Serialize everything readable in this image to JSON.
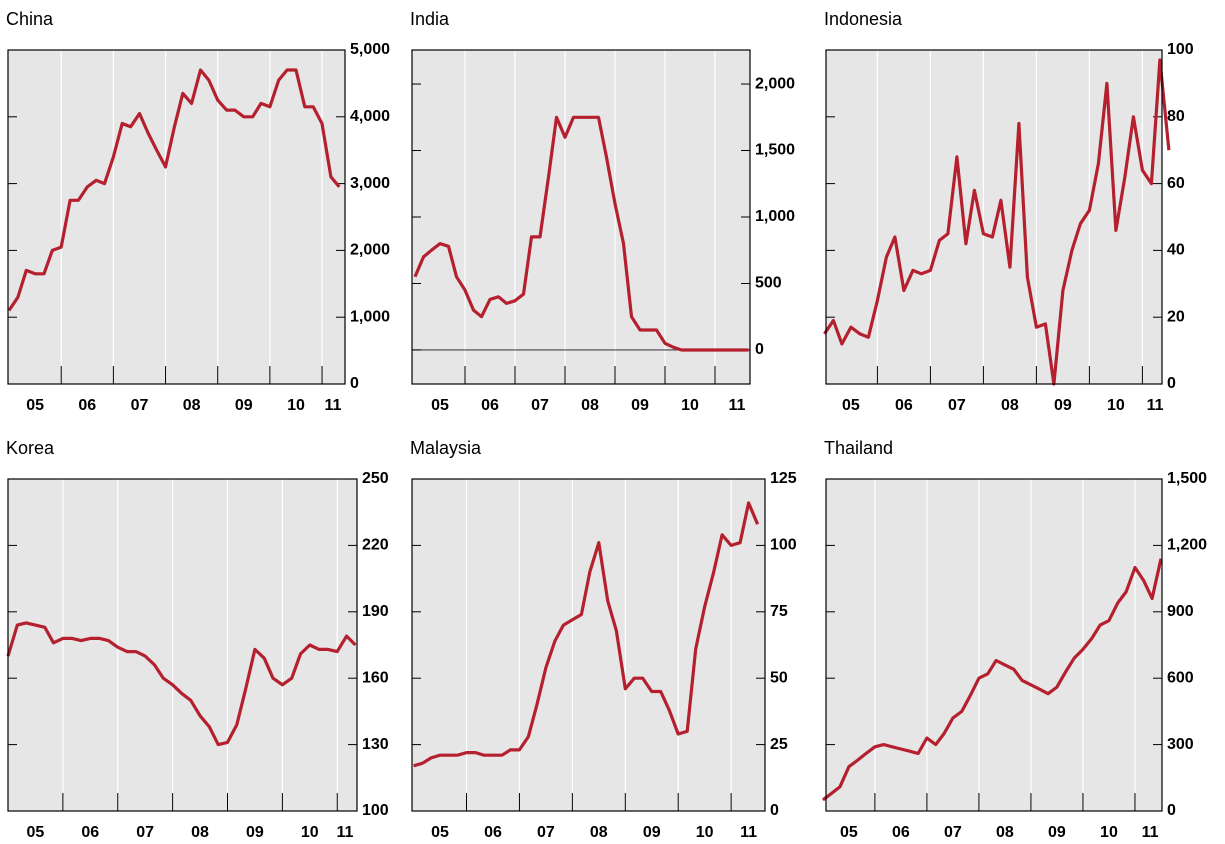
{
  "chart_data": [
    {
      "type": "line",
      "title": "China",
      "color": "#b5202e",
      "x": [
        2005,
        2005.17,
        2005.33,
        2005.5,
        2005.67,
        2005.83,
        2006,
        2006.17,
        2006.33,
        2006.5,
        2006.67,
        2006.83,
        2007,
        2007.17,
        2007.33,
        2007.5,
        2007.67,
        2007.83,
        2008,
        2008.17,
        2008.33,
        2008.5,
        2008.67,
        2008.83,
        2009,
        2009.17,
        2009.33,
        2009.5,
        2009.67,
        2009.83,
        2010,
        2010.17,
        2010.33,
        2010.5,
        2010.67,
        2010.83,
        2011,
        2011.17,
        2011.33
      ],
      "values": [
        1100,
        1300,
        1700,
        1650,
        1650,
        2000,
        2050,
        2750,
        2750,
        2950,
        3050,
        3000,
        3400,
        3900,
        3850,
        4050,
        3750,
        3500,
        3250,
        3850,
        4350,
        4200,
        4700,
        4550,
        4250,
        4100,
        4100,
        4000,
        4000,
        4200,
        4150,
        4550,
        4700,
        4700,
        4150,
        4150,
        3900,
        3100,
        2950
      ],
      "xlim": [
        2004.98,
        2011.44
      ],
      "xticks": [
        {
          "value": 2005.5,
          "label": "05"
        },
        {
          "value": 2006.5,
          "label": "06"
        },
        {
          "value": 2007.5,
          "label": "07"
        },
        {
          "value": 2008.5,
          "label": "08"
        },
        {
          "value": 2009.5,
          "label": "09"
        },
        {
          "value": 2010.5,
          "label": "10"
        },
        {
          "value": 2011.21,
          "label": "11"
        }
      ],
      "xgrid": [
        2006,
        2007,
        2008,
        2009,
        2010,
        2011
      ],
      "ylim": [
        0,
        5000
      ],
      "yticks": [
        0,
        {
          "value": 1000,
          "label": "1,000"
        },
        {
          "value": 2000,
          "label": "2,000"
        },
        {
          "value": 3000,
          "label": "3,000"
        },
        {
          "value": 4000,
          "label": "4,000"
        },
        {
          "value": 5000,
          "label": "5,000"
        }
      ]
    },
    {
      "type": "line",
      "title": "India",
      "color": "#b5202e",
      "x": [
        2005,
        2005.17,
        2005.33,
        2005.5,
        2005.67,
        2005.83,
        2006,
        2006.17,
        2006.33,
        2006.5,
        2006.67,
        2006.83,
        2007,
        2007.17,
        2007.33,
        2007.5,
        2007.67,
        2007.83,
        2008,
        2008.17,
        2008.33,
        2008.5,
        2008.67,
        2008.83,
        2009,
        2009.17,
        2009.33,
        2009.5,
        2009.67,
        2009.83,
        2010,
        2010.17,
        2010.33,
        2010.5,
        2010.67,
        2010.83,
        2011,
        2011.17,
        2011.33,
        2011.5,
        2011.67
      ],
      "values": [
        550,
        700,
        750,
        800,
        780,
        550,
        450,
        300,
        250,
        380,
        400,
        350,
        370,
        420,
        850,
        850,
        1300,
        1750,
        1600,
        1750,
        1750,
        1750,
        1750,
        1450,
        1100,
        800,
        250,
        150,
        150,
        150,
        50,
        20,
        0,
        0,
        0,
        0,
        0,
        0,
        0,
        0,
        0
      ],
      "xlim": [
        2004.94,
        2011.7
      ],
      "xticks": [
        {
          "value": 2005.5,
          "label": "05"
        },
        {
          "value": 2006.5,
          "label": "06"
        },
        {
          "value": 2007.5,
          "label": "07"
        },
        {
          "value": 2008.5,
          "label": "08"
        },
        {
          "value": 2009.5,
          "label": "09"
        },
        {
          "value": 2010.5,
          "label": "10"
        },
        {
          "value": 2011.44,
          "label": "11"
        }
      ],
      "xgrid": [
        2006,
        2007,
        2008,
        2009,
        2010,
        2011
      ],
      "ylim": [
        -256,
        2256
      ],
      "yticks": [
        0,
        500,
        {
          "value": 1000,
          "label": "1,000"
        },
        {
          "value": 1500,
          "label": "1,500"
        },
        {
          "value": 2000,
          "label": "2,000"
        }
      ]
    },
    {
      "type": "line",
      "title": "Indonesia",
      "color": "#b5202e",
      "x": [
        2005,
        2005.17,
        2005.33,
        2005.5,
        2005.67,
        2005.83,
        2006,
        2006.17,
        2006.33,
        2006.5,
        2006.67,
        2006.83,
        2007,
        2007.17,
        2007.33,
        2007.5,
        2007.67,
        2007.83,
        2008,
        2008.17,
        2008.33,
        2008.5,
        2008.67,
        2008.83,
        2009,
        2009.17,
        2009.33,
        2009.5,
        2009.67,
        2009.83,
        2010,
        2010.17,
        2010.33,
        2010.5,
        2010.67,
        2010.83,
        2011,
        2011.17,
        2011.33,
        2011.5
      ],
      "values": [
        15,
        19,
        12,
        17,
        15,
        14,
        25,
        38,
        44,
        28,
        34,
        33,
        34,
        43,
        45,
        68,
        42,
        58,
        45,
        44,
        55,
        35,
        78,
        32,
        17,
        18,
        0,
        28,
        40,
        48,
        52,
        66,
        90,
        46,
        62,
        80,
        64,
        60,
        97,
        70
      ],
      "xlim": [
        2005.03,
        2011.37
      ],
      "xticks": [
        {
          "value": 2005.5,
          "label": "05"
        },
        {
          "value": 2006.5,
          "label": "06"
        },
        {
          "value": 2007.5,
          "label": "07"
        },
        {
          "value": 2008.5,
          "label": "08"
        },
        {
          "value": 2009.5,
          "label": "09"
        },
        {
          "value": 2010.5,
          "label": "10"
        },
        {
          "value": 2011.24,
          "label": "11"
        }
      ],
      "xgrid": [
        2006,
        2007,
        2008,
        2009,
        2010,
        2011
      ],
      "ylim": [
        0,
        100
      ],
      "yticks": [
        0,
        20,
        40,
        60,
        80,
        100
      ]
    },
    {
      "type": "line",
      "title": "Korea",
      "color": "#b5202e",
      "x": [
        2005,
        2005.17,
        2005.33,
        2005.5,
        2005.67,
        2005.83,
        2006,
        2006.17,
        2006.33,
        2006.5,
        2006.67,
        2006.83,
        2007,
        2007.17,
        2007.33,
        2007.5,
        2007.67,
        2007.83,
        2008,
        2008.17,
        2008.33,
        2008.5,
        2008.67,
        2008.83,
        2009,
        2009.17,
        2009.33,
        2009.5,
        2009.67,
        2009.83,
        2010,
        2010.17,
        2010.33,
        2010.5,
        2010.67,
        2010.83,
        2011,
        2011.17,
        2011.33
      ],
      "values": [
        170,
        184,
        185,
        184,
        183,
        176,
        178,
        178,
        177,
        178,
        178,
        177,
        174,
        172,
        172,
        170,
        166,
        160,
        157,
        153,
        150,
        143,
        138,
        130,
        131,
        139,
        155,
        173,
        169,
        160,
        157,
        160,
        171,
        175,
        173,
        173,
        172,
        179,
        175
      ],
      "xlim": [
        2005.0,
        2011.36
      ],
      "xticks": [
        {
          "value": 2005.5,
          "label": "05"
        },
        {
          "value": 2006.5,
          "label": "06"
        },
        {
          "value": 2007.5,
          "label": "07"
        },
        {
          "value": 2008.5,
          "label": "08"
        },
        {
          "value": 2009.5,
          "label": "09"
        },
        {
          "value": 2010.5,
          "label": "10"
        },
        {
          "value": 2011.14,
          "label": "11"
        }
      ],
      "xgrid": [
        2006,
        2007,
        2008,
        2009,
        2010,
        2011
      ],
      "ylim": [
        100,
        250
      ],
      "yticks": [
        100,
        130,
        160,
        190,
        220,
        250
      ]
    },
    {
      "type": "line",
      "title": "Malaysia",
      "color": "#b5202e",
      "x": [
        2005,
        2005.17,
        2005.33,
        2005.5,
        2005.67,
        2005.83,
        2006,
        2006.17,
        2006.33,
        2006.5,
        2006.67,
        2006.83,
        2007,
        2007.17,
        2007.33,
        2007.5,
        2007.67,
        2007.83,
        2008,
        2008.17,
        2008.33,
        2008.5,
        2008.67,
        2008.83,
        2009,
        2009.17,
        2009.33,
        2009.5,
        2009.67,
        2009.83,
        2010,
        2010.17,
        2010.33,
        2010.5,
        2010.67,
        2010.83,
        2011,
        2011.17,
        2011.33,
        2011.5
      ],
      "values": [
        17,
        18,
        20,
        21,
        21,
        21,
        22,
        22,
        21,
        21,
        21,
        23,
        23,
        28,
        40,
        54,
        64,
        70,
        72,
        74,
        90,
        101,
        79,
        68,
        46,
        50,
        50,
        45,
        45,
        38,
        29,
        30,
        61,
        77,
        90,
        104,
        100,
        101,
        116,
        108
      ],
      "xlim": [
        2004.97,
        2011.64
      ],
      "xticks": [
        {
          "value": 2005.5,
          "label": "05"
        },
        {
          "value": 2006.5,
          "label": "06"
        },
        {
          "value": 2007.5,
          "label": "07"
        },
        {
          "value": 2008.5,
          "label": "08"
        },
        {
          "value": 2009.5,
          "label": "09"
        },
        {
          "value": 2010.5,
          "label": "10"
        },
        {
          "value": 2011.33,
          "label": "11"
        }
      ],
      "xgrid": [
        2006,
        2007,
        2008,
        2009,
        2010,
        2011
      ],
      "ylim": [
        0,
        125
      ],
      "yticks": [
        0,
        25,
        50,
        75,
        100,
        125
      ]
    },
    {
      "type": "line",
      "title": "Thailand",
      "color": "#b5202e",
      "x": [
        2005,
        2005.17,
        2005.33,
        2005.5,
        2005.67,
        2005.83,
        2006,
        2006.17,
        2006.33,
        2006.5,
        2006.67,
        2006.83,
        2007,
        2007.17,
        2007.33,
        2007.5,
        2007.67,
        2007.83,
        2008,
        2008.17,
        2008.33,
        2008.5,
        2008.67,
        2008.83,
        2009,
        2009.17,
        2009.33,
        2009.5,
        2009.67,
        2009.83,
        2010,
        2010.17,
        2010.33,
        2010.5,
        2010.67,
        2010.83,
        2011,
        2011.17,
        2011.33,
        2011.5
      ],
      "values": [
        50,
        80,
        110,
        200,
        230,
        260,
        290,
        300,
        290,
        280,
        270,
        260,
        330,
        300,
        350,
        420,
        450,
        520,
        600,
        620,
        680,
        660,
        640,
        590,
        570,
        550,
        530,
        560,
        630,
        690,
        730,
        780,
        840,
        860,
        940,
        990,
        1100,
        1040,
        960,
        1140
      ],
      "xlim": [
        2005.06,
        2011.52
      ],
      "xticks": [
        {
          "value": 2005.5,
          "label": "05"
        },
        {
          "value": 2006.5,
          "label": "06"
        },
        {
          "value": 2007.5,
          "label": "07"
        },
        {
          "value": 2008.5,
          "label": "08"
        },
        {
          "value": 2009.5,
          "label": "09"
        },
        {
          "value": 2010.5,
          "label": "10"
        },
        {
          "value": 2011.29,
          "label": "11"
        }
      ],
      "xgrid": [
        2006,
        2007,
        2008,
        2009,
        2010,
        2011
      ],
      "ylim": [
        0,
        1500
      ],
      "yticks": [
        0,
        300,
        600,
        900,
        {
          "value": 1200,
          "label": "1,200"
        },
        {
          "value": 1500,
          "label": "1,500"
        }
      ]
    }
  ]
}
